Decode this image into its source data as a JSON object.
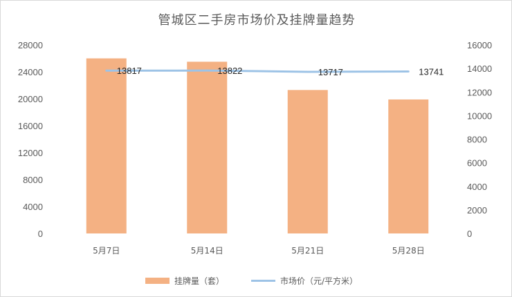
{
  "chart_data": {
    "type": "bar",
    "title": "管城区二手房市场价及挂牌量趋势",
    "categories": [
      "5月7日",
      "5月14日",
      "5月21日",
      "5月28日"
    ],
    "series": [
      {
        "name": "挂牌量（套）",
        "type": "bar",
        "axis": "left",
        "color": "#f4b183",
        "values": [
          26000,
          25500,
          21300,
          19900
        ]
      },
      {
        "name": "市场价（元/平方米）",
        "type": "line",
        "axis": "right",
        "color": "#9dc3e6",
        "values": [
          13817,
          13822,
          13717,
          13741
        ],
        "data_labels": [
          "13817",
          "13822",
          "13717",
          "13741"
        ]
      }
    ],
    "y_left": {
      "ylim": [
        0,
        28000
      ],
      "ticks": [
        "0",
        "4000",
        "8000",
        "12000",
        "16000",
        "20000",
        "24000",
        "28000"
      ]
    },
    "y_right": {
      "ylim": [
        0,
        16000
      ],
      "ticks": [
        "0",
        "2000",
        "4000",
        "6000",
        "8000",
        "10000",
        "12000",
        "14000",
        "16000"
      ]
    },
    "grid": false,
    "legend_position": "bottom"
  }
}
